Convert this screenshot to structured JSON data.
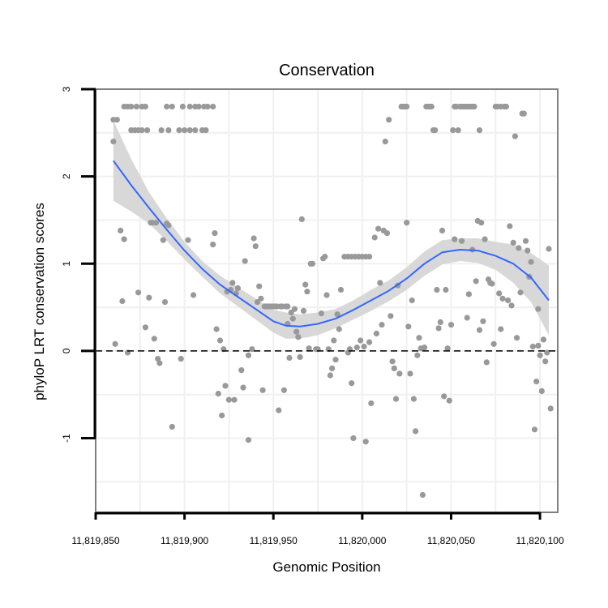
{
  "chart_data": {
    "type": "scatter",
    "title": "Conservation",
    "xlabel": "Genomic Position",
    "ylabel": "phyloP LRT conservation scores",
    "xlim": [
      11819850,
      11820110
    ],
    "ylim": [
      -1.85,
      3
    ],
    "x_ticks": [
      11819850,
      11819900,
      11819950,
      11820000,
      11820050,
      11820100
    ],
    "x_tick_labels": [
      "11,819,850",
      "11,819,900",
      "11,819,950",
      "11,820,000",
      "11,820,050",
      "11,820,100"
    ],
    "y_ticks": [
      -1,
      0,
      1,
      2,
      3
    ],
    "y_tick_labels": [
      "-1",
      "0",
      "1",
      "2",
      "3"
    ],
    "reference_line_y": 0,
    "colors": {
      "points": "#999999",
      "smooth": "#3366ff",
      "ribbon": "#d6d6d6",
      "grid": "#f0f0f0",
      "frame": "#808080"
    },
    "points": [
      [
        11819860,
        2.65
      ],
      [
        11819862,
        2.65
      ],
      [
        11819860,
        2.4
      ],
      [
        11819861,
        0.08
      ],
      [
        11819864,
        1.38
      ],
      [
        11819865,
        0.57
      ],
      [
        11819866,
        1.28
      ],
      [
        11819868,
        -0.02
      ],
      [
        11819866,
        2.8
      ],
      [
        11819868,
        2.8
      ],
      [
        11819870,
        2.8
      ],
      [
        11819873,
        2.8
      ],
      [
        11819876,
        2.8
      ],
      [
        11819878,
        2.8
      ],
      [
        11819870,
        2.53
      ],
      [
        11819872,
        2.53
      ],
      [
        11819874,
        2.53
      ],
      [
        11819876,
        2.53
      ],
      [
        11819879,
        2.53
      ],
      [
        11819874,
        0.67
      ],
      [
        11819878,
        0.27
      ],
      [
        11819880,
        0.61
      ],
      [
        11819881,
        1.47
      ],
      [
        11819882,
        1.47
      ],
      [
        11819883,
        0.14
      ],
      [
        11819884,
        1.47
      ],
      [
        11819885,
        -0.09
      ],
      [
        11819886,
        -0.14
      ],
      [
        11819888,
        1.27
      ],
      [
        11819889,
        0.56
      ],
      [
        11819890,
        1.46
      ],
      [
        11819891,
        1.44
      ],
      [
        11819887,
        2.53
      ],
      [
        11819891,
        2.53
      ],
      [
        11819897,
        2.53
      ],
      [
        11819900,
        2.53
      ],
      [
        11819903,
        2.53
      ],
      [
        11819906,
        2.53
      ],
      [
        11819910,
        2.53
      ],
      [
        11819912,
        2.53
      ],
      [
        11819890,
        2.8
      ],
      [
        11819893,
        2.8
      ],
      [
        11819899,
        2.8
      ],
      [
        11819903,
        2.8
      ],
      [
        11819906,
        2.8
      ],
      [
        11819908,
        2.8
      ],
      [
        11819911,
        2.8
      ],
      [
        11819913,
        2.8
      ],
      [
        11819916,
        2.8
      ],
      [
        11819893,
        -0.87
      ],
      [
        11819898,
        -0.09
      ],
      [
        11819902,
        1.27
      ],
      [
        11819905,
        0.64
      ],
      [
        11819916,
        1.22
      ],
      [
        11819917,
        1.35
      ],
      [
        11819918,
        0.25
      ],
      [
        11819919,
        -0.49
      ],
      [
        11819920,
        0.12
      ],
      [
        11819921,
        -0.74
      ],
      [
        11819922,
        0.02
      ],
      [
        11819923,
        -0.4
      ],
      [
        11819924,
        0.68
      ],
      [
        11819925,
        -0.56
      ],
      [
        11819926,
        0.7
      ],
      [
        11819927,
        0.78
      ],
      [
        11819928,
        -0.56
      ],
      [
        11819929,
        0.66
      ],
      [
        11819930,
        0.72
      ],
      [
        11819932,
        -0.22
      ],
      [
        11819933,
        -0.42
      ],
      [
        11819934,
        1.03
      ],
      [
        11819936,
        -0.05
      ],
      [
        11819936,
        -1.02
      ],
      [
        11819938,
        0.02
      ],
      [
        11819939,
        1.29
      ],
      [
        11819940,
        1.2
      ],
      [
        11819941,
        0.56
      ],
      [
        11819942,
        0.74
      ],
      [
        11819943,
        0.6
      ],
      [
        11819944,
        -0.45
      ],
      [
        11819945,
        0.51
      ],
      [
        11819946,
        0.51
      ],
      [
        11819947,
        0.51
      ],
      [
        11819948,
        0.51
      ],
      [
        11819949,
        0.51
      ],
      [
        11819950,
        0.51
      ],
      [
        11819951,
        0.51
      ],
      [
        11819952,
        0.51
      ],
      [
        11819954,
        0.51
      ],
      [
        11819955,
        0.51
      ],
      [
        11819957,
        0.51
      ],
      [
        11819958,
        0.51
      ],
      [
        11819953,
        -0.68
      ],
      [
        11819956,
        -0.45
      ],
      [
        11819958,
        0.31
      ],
      [
        11819959,
        -0.08
      ],
      [
        11819960,
        0.44
      ],
      [
        11819961,
        0.37
      ],
      [
        11819962,
        0.48
      ],
      [
        11819963,
        0.22
      ],
      [
        11819964,
        0.16
      ],
      [
        11819965,
        -0.07
      ],
      [
        11819966,
        1.51
      ],
      [
        11819967,
        0.46
      ],
      [
        11819968,
        0.76
      ],
      [
        11819969,
        0.68
      ],
      [
        11819970,
        0.03
      ],
      [
        11819971,
        1.0
      ],
      [
        11819972,
        1.0
      ],
      [
        11819974,
        0.02
      ],
      [
        11819975,
        0.02
      ],
      [
        11819977,
        0.43
      ],
      [
        11819978,
        1.06
      ],
      [
        11819979,
        1.08
      ],
      [
        11819980,
        0.64
      ],
      [
        11819981,
        0.02
      ],
      [
        11819982,
        -0.28
      ],
      [
        11819983,
        -0.2
      ],
      [
        11819984,
        0.12
      ],
      [
        11819985,
        -0.1
      ],
      [
        11819986,
        0.42
      ],
      [
        11819987,
        0.25
      ],
      [
        11819988,
        0.7
      ],
      [
        11819990,
        1.08
      ],
      [
        11819992,
        1.08
      ],
      [
        11819994,
        1.08
      ],
      [
        11819996,
        1.08
      ],
      [
        11819998,
        1.08
      ],
      [
        11820000,
        1.08
      ],
      [
        11820002,
        1.08
      ],
      [
        11820004,
        1.08
      ],
      [
        11819992,
        -0.02
      ],
      [
        11819993,
        0.02
      ],
      [
        11819994,
        -0.37
      ],
      [
        11819995,
        -1.0
      ],
      [
        11819997,
        0.04
      ],
      [
        11819999,
        0.12
      ],
      [
        11820001,
        0.05
      ],
      [
        11820002,
        -1.04
      ],
      [
        11820004,
        0.1
      ],
      [
        11820005,
        -0.6
      ],
      [
        11820007,
        1.3
      ],
      [
        11820008,
        0.2
      ],
      [
        11820009,
        1.4
      ],
      [
        11820010,
        0.78
      ],
      [
        11820011,
        0.3
      ],
      [
        11820012,
        1.38
      ],
      [
        11820013,
        2.4
      ],
      [
        11820014,
        1.35
      ],
      [
        11820015,
        2.65
      ],
      [
        11820016,
        0.4
      ],
      [
        11820017,
        -0.12
      ],
      [
        11820018,
        -0.2
      ],
      [
        11820019,
        -0.55
      ],
      [
        11820020,
        0.75
      ],
      [
        11820021,
        -0.26
      ],
      [
        11820022,
        2.8
      ],
      [
        11820023,
        2.8
      ],
      [
        11820024,
        2.8
      ],
      [
        11820025,
        2.8
      ],
      [
        11820025,
        1.47
      ],
      [
        11820026,
        0.28
      ],
      [
        11820027,
        -0.26
      ],
      [
        11820028,
        0.58
      ],
      [
        11820029,
        -0.55
      ],
      [
        11820030,
        -0.92
      ],
      [
        11820031,
        -0.05
      ],
      [
        11820032,
        0.15
      ],
      [
        11820033,
        0.03
      ],
      [
        11820034,
        -1.65
      ],
      [
        11820035,
        0.04
      ],
      [
        11820036,
        2.8
      ],
      [
        11820037,
        2.8
      ],
      [
        11820038,
        2.8
      ],
      [
        11820039,
        2.8
      ],
      [
        11820040,
        2.53
      ],
      [
        11820041,
        2.53
      ],
      [
        11820042,
        0.7
      ],
      [
        11820043,
        0.26
      ],
      [
        11820044,
        0.33
      ],
      [
        11820045,
        1.38
      ],
      [
        11820046,
        -0.52
      ],
      [
        11820047,
        0.7
      ],
      [
        11820048,
        0.03
      ],
      [
        11820049,
        -0.57
      ],
      [
        11820050,
        0.3
      ],
      [
        11820051,
        2.53
      ],
      [
        11820052,
        2.8
      ],
      [
        11820053,
        2.8
      ],
      [
        11820054,
        2.53
      ],
      [
        11820055,
        2.8
      ],
      [
        11820056,
        2.8
      ],
      [
        11820057,
        2.8
      ],
      [
        11820058,
        2.8
      ],
      [
        11820059,
        2.8
      ],
      [
        11820060,
        2.8
      ],
      [
        11820061,
        2.8
      ],
      [
        11820062,
        2.8
      ],
      [
        11820063,
        2.8
      ],
      [
        11820052,
        1.28
      ],
      [
        11820056,
        1.26
      ],
      [
        11820059,
        0.38
      ],
      [
        11820060,
        0.65
      ],
      [
        11820062,
        1.16
      ],
      [
        11820064,
        0.8
      ],
      [
        11820065,
        1.49
      ],
      [
        11820066,
        2.53
      ],
      [
        11820066,
        0.24
      ],
      [
        11820067,
        1.47
      ],
      [
        11820068,
        0.34
      ],
      [
        11820069,
        1.28
      ],
      [
        11820070,
        -0.13
      ],
      [
        11820071,
        0.82
      ],
      [
        11820072,
        0.78
      ],
      [
        11820073,
        0.77
      ],
      [
        11820074,
        0.08
      ],
      [
        11820075,
        2.8
      ],
      [
        11820076,
        2.8
      ],
      [
        11820077,
        0.66
      ],
      [
        11820078,
        2.8
      ],
      [
        11820078,
        0.25
      ],
      [
        11820079,
        0.6
      ],
      [
        11820080,
        2.8
      ],
      [
        11820081,
        2.8
      ],
      [
        11820082,
        0.58
      ],
      [
        11820083,
        1.43
      ],
      [
        11820084,
        0.52
      ],
      [
        11820085,
        1.24
      ],
      [
        11820086,
        2.46
      ],
      [
        11820087,
        0.15
      ],
      [
        11820088,
        1.18
      ],
      [
        11820089,
        0.67
      ],
      [
        11820090,
        2.72
      ],
      [
        11820091,
        2.72
      ],
      [
        11820092,
        1.26
      ],
      [
        11820093,
        1.15
      ],
      [
        11820094,
        0.85
      ],
      [
        11820095,
        1.02
      ],
      [
        11820096,
        0.05
      ],
      [
        11820097,
        -0.9
      ],
      [
        11820098,
        -0.35
      ],
      [
        11820099,
        0.06
      ],
      [
        11820100,
        -0.05
      ],
      [
        11820101,
        -0.46
      ],
      [
        11820102,
        0.13
      ],
      [
        11820103,
        -0.12
      ],
      [
        11820104,
        -0.02
      ],
      [
        11820105,
        1.17
      ],
      [
        11820106,
        -0.66
      ],
      [
        11820099,
        0.48
      ]
    ],
    "smooth": {
      "x": [
        11819860,
        11819870,
        11819880,
        11819890,
        11819900,
        11819910,
        11819920,
        11819930,
        11819940,
        11819950,
        11819957,
        11819965,
        11819975,
        11819985,
        11819995,
        11820005,
        11820015,
        11820025,
        11820035,
        11820045,
        11820055,
        11820065,
        11820075,
        11820085,
        11820095,
        11820105
      ],
      "y": [
        2.18,
        1.9,
        1.64,
        1.39,
        1.15,
        0.94,
        0.76,
        0.62,
        0.48,
        0.34,
        0.29,
        0.28,
        0.31,
        0.37,
        0.47,
        0.58,
        0.69,
        0.83,
        1.0,
        1.13,
        1.16,
        1.15,
        1.09,
        1.0,
        0.84,
        0.58
      ],
      "lower": [
        1.72,
        1.6,
        1.46,
        1.26,
        1.05,
        0.85,
        0.66,
        0.51,
        0.36,
        0.21,
        0.14,
        0.14,
        0.18,
        0.26,
        0.36,
        0.46,
        0.57,
        0.7,
        0.86,
        0.99,
        1.03,
        1.01,
        0.93,
        0.78,
        0.56,
        0.18
      ],
      "upper": [
        2.64,
        2.2,
        1.82,
        1.52,
        1.25,
        1.03,
        0.86,
        0.73,
        0.6,
        0.47,
        0.44,
        0.42,
        0.44,
        0.48,
        0.58,
        0.7,
        0.81,
        0.96,
        1.14,
        1.27,
        1.29,
        1.29,
        1.25,
        1.22,
        1.12,
        0.98
      ]
    }
  }
}
